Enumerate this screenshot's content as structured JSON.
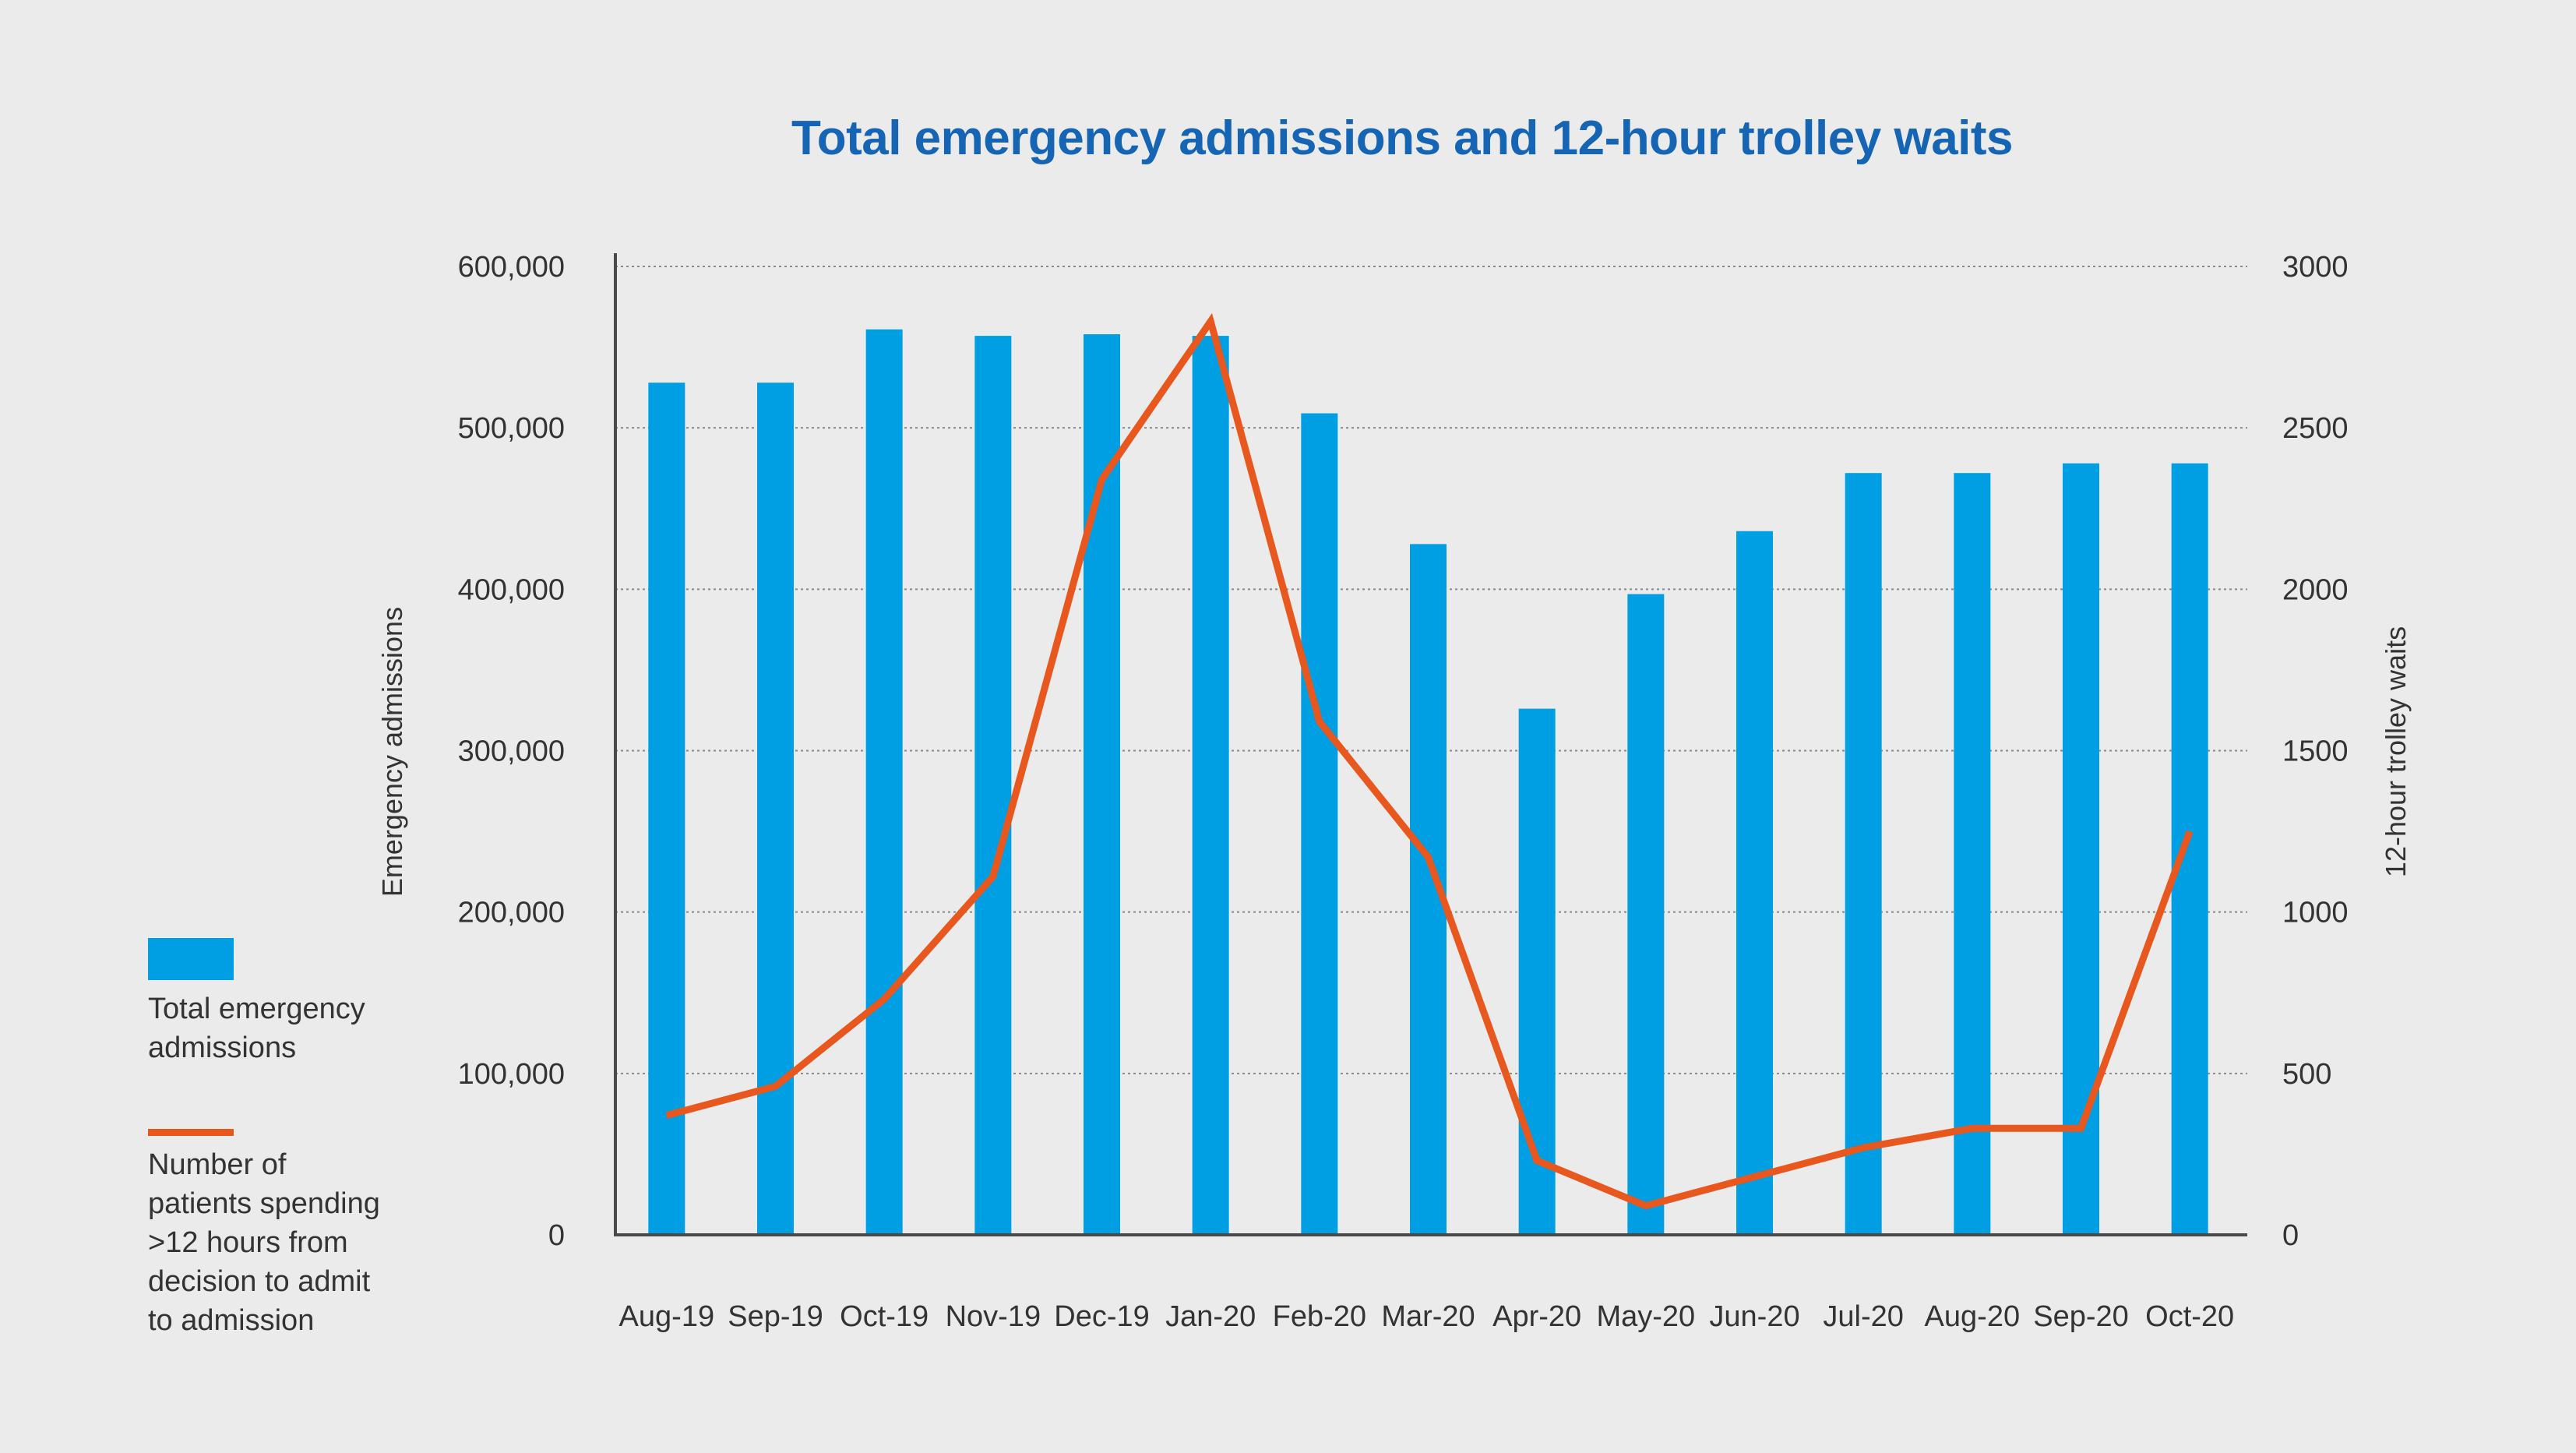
{
  "chart_data": {
    "type": "bar+line",
    "title": "Total emergency admissions and 12-hour trolley waits",
    "categories": [
      "Aug-19",
      "Sep-19",
      "Oct-19",
      "Nov-19",
      "Dec-19",
      "Jan-20",
      "Feb-20",
      "Mar-20",
      "Apr-20",
      "May-20",
      "Jun-20",
      "Jul-20",
      "Aug-20",
      "Sep-20",
      "Oct-20"
    ],
    "series": [
      {
        "name": "Total emergency admissions",
        "type": "bar",
        "axis": "left",
        "color": "#009fe3",
        "values": [
          528000,
          528000,
          561000,
          557000,
          558000,
          557000,
          509000,
          428000,
          326000,
          397000,
          436000,
          472000,
          472000,
          478000,
          478000
        ]
      },
      {
        "name": "Number of patients spending >12 hours from decision to admit to admission",
        "type": "line",
        "axis": "right",
        "color": "#e8571e",
        "values": [
          370,
          460,
          730,
          1110,
          2340,
          2830,
          1590,
          1170,
          230,
          90,
          180,
          270,
          330,
          330,
          1250
        ]
      }
    ],
    "ylabel": "Emergency admissions",
    "ylabel_right": "12-hour trolley waits",
    "ylim": [
      0,
      600000
    ],
    "ylim_right": [
      0,
      3000
    ],
    "yticks": [
      "0",
      "100,000",
      "200,000",
      "300,000",
      "400,000",
      "500,000",
      "600,000"
    ],
    "yticks_right": [
      "0",
      "500",
      "1000",
      "1500",
      "2000",
      "2500",
      "3000"
    ],
    "grid": "dotted horizontal",
    "legend_position": "left"
  },
  "legend": {
    "bar_label": "Total emergency admissions",
    "line_label": "Number of patients spending >12 hours from decision to admit to admission"
  },
  "colors": {
    "background": "#ebebeb",
    "title": "#1565b4",
    "bar": "#009fe3",
    "line": "#e8571e",
    "axis": "#4a4a4a"
  }
}
